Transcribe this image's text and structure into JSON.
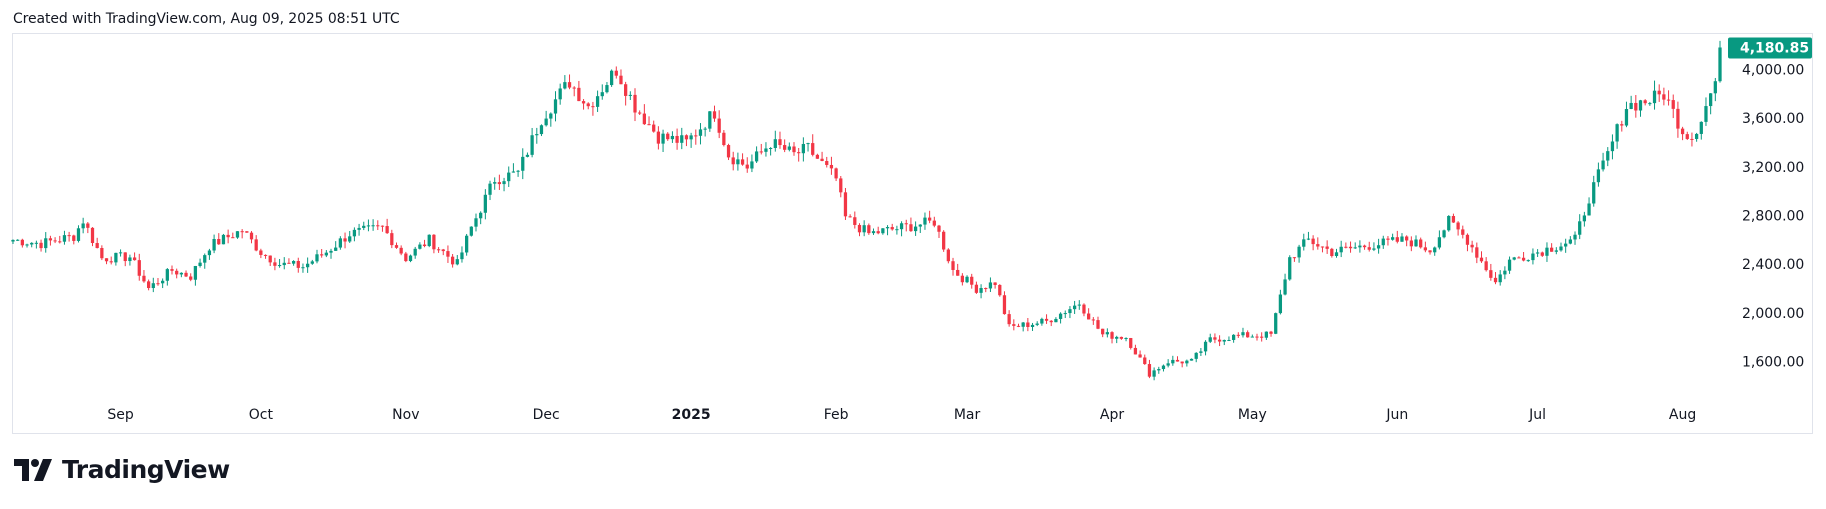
{
  "header": {
    "caption": "Created with TradingView.com, Aug 09, 2025 08:51 UTC"
  },
  "brand": {
    "name": "TradingView",
    "logo_icon": "tradingview-logo-icon"
  },
  "colors": {
    "up": "#089981",
    "down": "#f23645",
    "label_bg": "#089981",
    "axis_text": "#131722"
  },
  "chart_data": {
    "type": "candlestick",
    "x_range": [
      "2024-08-09",
      "2025-08-09"
    ],
    "ylim": [
      1300,
      4300
    ],
    "x_tick_labels": [
      {
        "date": "2024-09-01",
        "label": "Sep",
        "bold": false
      },
      {
        "date": "2024-10-01",
        "label": "Oct",
        "bold": false
      },
      {
        "date": "2024-11-01",
        "label": "Nov",
        "bold": false
      },
      {
        "date": "2024-12-01",
        "label": "Dec",
        "bold": false
      },
      {
        "date": "2025-01-01",
        "label": "2025",
        "bold": true
      },
      {
        "date": "2025-02-01",
        "label": "Feb",
        "bold": false
      },
      {
        "date": "2025-03-01",
        "label": "Mar",
        "bold": false
      },
      {
        "date": "2025-04-01",
        "label": "Apr",
        "bold": false
      },
      {
        "date": "2025-05-01",
        "label": "May",
        "bold": false
      },
      {
        "date": "2025-06-01",
        "label": "Jun",
        "bold": false
      },
      {
        "date": "2025-07-01",
        "label": "Jul",
        "bold": false
      },
      {
        "date": "2025-08-01",
        "label": "Aug",
        "bold": false
      }
    ],
    "y_ticks": [
      {
        "value": 1600,
        "label": "1,600.00"
      },
      {
        "value": 2000,
        "label": "2,000.00"
      },
      {
        "value": 2400,
        "label": "2,400.00"
      },
      {
        "value": 2800,
        "label": "2,800.00"
      },
      {
        "value": 3200,
        "label": "3,200.00"
      },
      {
        "value": 3600,
        "label": "3,600.00"
      },
      {
        "value": 4000,
        "label": "4,000.00"
      }
    ],
    "last_price": {
      "value": 4180.85,
      "label": "4,180.85"
    },
    "close_anchors": [
      [
        "2024-08-09",
        2600
      ],
      [
        "2024-08-15",
        2570
      ],
      [
        "2024-08-22",
        2630
      ],
      [
        "2024-08-24",
        2760
      ],
      [
        "2024-08-28",
        2450
      ],
      [
        "2024-09-03",
        2460
      ],
      [
        "2024-09-07",
        2200
      ],
      [
        "2024-09-12",
        2350
      ],
      [
        "2024-09-16",
        2300
      ],
      [
        "2024-09-20",
        2550
      ],
      [
        "2024-09-27",
        2680
      ],
      [
        "2024-10-01",
        2500
      ],
      [
        "2024-10-05",
        2400
      ],
      [
        "2024-10-10",
        2380
      ],
      [
        "2024-10-15",
        2500
      ],
      [
        "2024-10-20",
        2650
      ],
      [
        "2024-10-27",
        2700
      ],
      [
        "2024-11-01",
        2450
      ],
      [
        "2024-11-06",
        2600
      ],
      [
        "2024-11-12",
        2400
      ],
      [
        "2024-11-15",
        2700
      ],
      [
        "2024-11-20",
        3100
      ],
      [
        "2024-11-25",
        3150
      ],
      [
        "2024-11-30",
        3600
      ],
      [
        "2024-12-06",
        3900
      ],
      [
        "2024-12-10",
        3700
      ],
      [
        "2024-12-16",
        4000
      ],
      [
        "2024-12-20",
        3700
      ],
      [
        "2024-12-25",
        3450
      ],
      [
        "2024-12-31",
        3400
      ],
      [
        "2025-01-06",
        3650
      ],
      [
        "2025-01-09",
        3300
      ],
      [
        "2025-01-13",
        3200
      ],
      [
        "2025-01-18",
        3400
      ],
      [
        "2025-01-23",
        3300
      ],
      [
        "2025-01-26",
        3350
      ],
      [
        "2025-02-01",
        3100
      ],
      [
        "2025-02-03",
        2780
      ],
      [
        "2025-02-08",
        2650
      ],
      [
        "2025-02-15",
        2700
      ],
      [
        "2025-02-22",
        2750
      ],
      [
        "2025-02-26",
        2350
      ],
      [
        "2025-03-03",
        2200
      ],
      [
        "2025-03-07",
        2250
      ],
      [
        "2025-03-10",
        1880
      ],
      [
        "2025-03-18",
        1930
      ],
      [
        "2025-03-25",
        2080
      ],
      [
        "2025-03-30",
        1820
      ],
      [
        "2025-04-04",
        1800
      ],
      [
        "2025-04-09",
        1500
      ],
      [
        "2025-04-13",
        1600
      ],
      [
        "2025-04-18",
        1600
      ],
      [
        "2025-04-22",
        1780
      ],
      [
        "2025-04-28",
        1810
      ],
      [
        "2025-05-05",
        1820
      ],
      [
        "2025-05-09",
        2450
      ],
      [
        "2025-05-13",
        2600
      ],
      [
        "2025-05-18",
        2500
      ],
      [
        "2025-05-25",
        2550
      ],
      [
        "2025-06-03",
        2600
      ],
      [
        "2025-06-08",
        2520
      ],
      [
        "2025-06-12",
        2750
      ],
      [
        "2025-06-16",
        2600
      ],
      [
        "2025-06-22",
        2250
      ],
      [
        "2025-06-25",
        2430
      ],
      [
        "2025-07-01",
        2500
      ],
      [
        "2025-07-09",
        2600
      ],
      [
        "2025-07-12",
        2950
      ],
      [
        "2025-07-16",
        3300
      ],
      [
        "2025-07-20",
        3700
      ],
      [
        "2025-07-25",
        3750
      ],
      [
        "2025-07-28",
        3800
      ],
      [
        "2025-08-01",
        3500
      ],
      [
        "2025-08-03",
        3450
      ],
      [
        "2025-08-05",
        3600
      ],
      [
        "2025-08-08",
        3900
      ],
      [
        "2025-08-09",
        4180.85
      ]
    ]
  }
}
